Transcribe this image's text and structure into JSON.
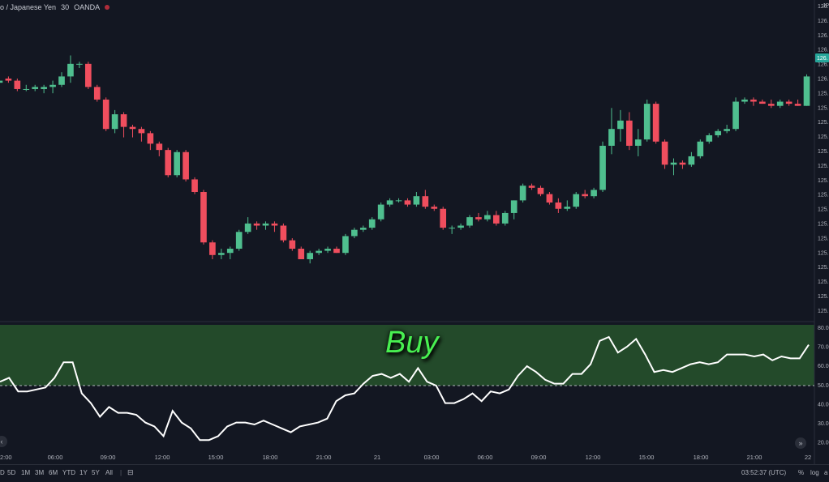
{
  "header": {
    "symbol_fragment": "o / Japanese Yen",
    "interval": "30",
    "broker": "OANDA"
  },
  "price_axis": {
    "currency_fragment": "JP",
    "labels": [
      "126.",
      "126.",
      "126.",
      "126.",
      "126.",
      "126.",
      "125.",
      "125.",
      "125.",
      "125.",
      "125.",
      "125.",
      "125.",
      "125.",
      "125.",
      "125.",
      "125.",
      "125.",
      "125.",
      "125.",
      "125.",
      "125."
    ],
    "current_price_label": "126.",
    "current_price_color": "#26a69a"
  },
  "time_axis": {
    "labels": [
      "2:00",
      "06:00",
      "09:00",
      "12:00",
      "15:00",
      "18:00",
      "21:00",
      "21",
      "03:00",
      "06:00",
      "09:00",
      "12:00",
      "15:00",
      "18:00",
      "21:00",
      "22"
    ]
  },
  "indicator": {
    "axis_labels": [
      "80.00",
      "70.00",
      "60.00",
      "50.00",
      "40.00",
      "30.00",
      "20.00"
    ],
    "zone_color": "#234a2a",
    "line_color": "#ffffff",
    "annotation": "Buy",
    "annotation_color": "#48f051"
  },
  "toolbar": {
    "ranges": [
      "5D",
      "1M",
      "3M",
      "6M",
      "YTD",
      "1Y",
      "5Y",
      "All"
    ],
    "range_prefix": "D",
    "clock": "03:52:37 (UTC)",
    "percent": "%",
    "log": "log",
    "auto": "a"
  },
  "colors": {
    "background": "#131722",
    "up": "#26a69a",
    "down": "#ef5350",
    "up_candle": "#4fbf8f",
    "down_candle": "#f04e5e"
  },
  "chart_data": {
    "type": "candlestick",
    "x_ticks": [
      "06:00",
      "09:00",
      "12:00",
      "15:00",
      "18:00",
      "21:00",
      "21",
      "03:00",
      "06:00",
      "09:00",
      "12:00",
      "15:00",
      "18:00",
      "21:00",
      "22"
    ],
    "price_ylim": [
      124.95,
      126.4
    ],
    "candles": [
      {
        "o": 126.06,
        "h": 126.08,
        "l": 126.02,
        "c": 126.07
      },
      {
        "o": 126.08,
        "h": 126.09,
        "l": 126.06,
        "c": 126.07
      },
      {
        "o": 126.07,
        "h": 126.08,
        "l": 126.02,
        "c": 126.03
      },
      {
        "o": 126.03,
        "h": 126.05,
        "l": 126.02,
        "c": 126.03
      },
      {
        "o": 126.03,
        "h": 126.05,
        "l": 126.02,
        "c": 126.04
      },
      {
        "o": 126.03,
        "h": 126.05,
        "l": 126.01,
        "c": 126.04
      },
      {
        "o": 126.04,
        "h": 126.07,
        "l": 126.01,
        "c": 126.05
      },
      {
        "o": 126.05,
        "h": 126.11,
        "l": 126.04,
        "c": 126.09
      },
      {
        "o": 126.09,
        "h": 126.19,
        "l": 126.06,
        "c": 126.15
      },
      {
        "o": 126.15,
        "h": 126.16,
        "l": 126.13,
        "c": 126.15
      },
      {
        "o": 126.15,
        "h": 126.16,
        "l": 126.03,
        "c": 126.04
      },
      {
        "o": 126.04,
        "h": 126.05,
        "l": 125.97,
        "c": 125.98
      },
      {
        "o": 125.98,
        "h": 125.99,
        "l": 125.83,
        "c": 125.84
      },
      {
        "o": 125.84,
        "h": 125.93,
        "l": 125.82,
        "c": 125.91
      },
      {
        "o": 125.91,
        "h": 125.92,
        "l": 125.8,
        "c": 125.85
      },
      {
        "o": 125.85,
        "h": 125.86,
        "l": 125.8,
        "c": 125.84
      },
      {
        "o": 125.84,
        "h": 125.85,
        "l": 125.78,
        "c": 125.82
      },
      {
        "o": 125.82,
        "h": 125.83,
        "l": 125.74,
        "c": 125.77
      },
      {
        "o": 125.77,
        "h": 125.78,
        "l": 125.71,
        "c": 125.74
      },
      {
        "o": 125.74,
        "h": 125.75,
        "l": 125.61,
        "c": 125.62
      },
      {
        "o": 125.62,
        "h": 125.74,
        "l": 125.61,
        "c": 125.73
      },
      {
        "o": 125.73,
        "h": 125.74,
        "l": 125.59,
        "c": 125.6
      },
      {
        "o": 125.6,
        "h": 125.61,
        "l": 125.53,
        "c": 125.54
      },
      {
        "o": 125.54,
        "h": 125.55,
        "l": 125.29,
        "c": 125.3
      },
      {
        "o": 125.3,
        "h": 125.31,
        "l": 125.22,
        "c": 125.24
      },
      {
        "o": 125.24,
        "h": 125.27,
        "l": 125.22,
        "c": 125.25
      },
      {
        "o": 125.25,
        "h": 125.28,
        "l": 125.22,
        "c": 125.27
      },
      {
        "o": 125.27,
        "h": 125.36,
        "l": 125.26,
        "c": 125.35
      },
      {
        "o": 125.35,
        "h": 125.42,
        "l": 125.34,
        "c": 125.39
      },
      {
        "o": 125.39,
        "h": 125.4,
        "l": 125.36,
        "c": 125.38
      },
      {
        "o": 125.38,
        "h": 125.4,
        "l": 125.36,
        "c": 125.39
      },
      {
        "o": 125.39,
        "h": 125.4,
        "l": 125.35,
        "c": 125.38
      },
      {
        "o": 125.38,
        "h": 125.39,
        "l": 125.3,
        "c": 125.31
      },
      {
        "o": 125.31,
        "h": 125.32,
        "l": 125.26,
        "c": 125.27
      },
      {
        "o": 125.27,
        "h": 125.28,
        "l": 125.22,
        "c": 125.22
      },
      {
        "o": 125.22,
        "h": 125.26,
        "l": 125.2,
        "c": 125.25
      },
      {
        "o": 125.25,
        "h": 125.27,
        "l": 125.24,
        "c": 125.26
      },
      {
        "o": 125.26,
        "h": 125.28,
        "l": 125.25,
        "c": 125.27
      },
      {
        "o": 125.27,
        "h": 125.28,
        "l": 125.25,
        "c": 125.25
      },
      {
        "o": 125.25,
        "h": 125.34,
        "l": 125.24,
        "c": 125.33
      },
      {
        "o": 125.33,
        "h": 125.37,
        "l": 125.32,
        "c": 125.36
      },
      {
        "o": 125.36,
        "h": 125.38,
        "l": 125.35,
        "c": 125.37
      },
      {
        "o": 125.37,
        "h": 125.42,
        "l": 125.36,
        "c": 125.41
      },
      {
        "o": 125.41,
        "h": 125.49,
        "l": 125.4,
        "c": 125.48
      },
      {
        "o": 125.48,
        "h": 125.51,
        "l": 125.47,
        "c": 125.5
      },
      {
        "o": 125.5,
        "h": 125.51,
        "l": 125.49,
        "c": 125.5
      },
      {
        "o": 125.5,
        "h": 125.51,
        "l": 125.47,
        "c": 125.48
      },
      {
        "o": 125.48,
        "h": 125.54,
        "l": 125.47,
        "c": 125.52
      },
      {
        "o": 125.52,
        "h": 125.55,
        "l": 125.46,
        "c": 125.47
      },
      {
        "o": 125.47,
        "h": 125.48,
        "l": 125.45,
        "c": 125.46
      },
      {
        "o": 125.46,
        "h": 125.47,
        "l": 125.36,
        "c": 125.37
      },
      {
        "o": 125.37,
        "h": 125.38,
        "l": 125.34,
        "c": 125.37
      },
      {
        "o": 125.37,
        "h": 125.39,
        "l": 125.36,
        "c": 125.38
      },
      {
        "o": 125.38,
        "h": 125.43,
        "l": 125.37,
        "c": 125.42
      },
      {
        "o": 125.42,
        "h": 125.44,
        "l": 125.4,
        "c": 125.41
      },
      {
        "o": 125.41,
        "h": 125.45,
        "l": 125.4,
        "c": 125.43
      },
      {
        "o": 125.43,
        "h": 125.45,
        "l": 125.38,
        "c": 125.39
      },
      {
        "o": 125.39,
        "h": 125.45,
        "l": 125.38,
        "c": 125.44
      },
      {
        "o": 125.44,
        "h": 125.5,
        "l": 125.41,
        "c": 125.5
      },
      {
        "o": 125.5,
        "h": 125.58,
        "l": 125.49,
        "c": 125.57
      },
      {
        "o": 125.57,
        "h": 125.58,
        "l": 125.55,
        "c": 125.56
      },
      {
        "o": 125.56,
        "h": 125.57,
        "l": 125.52,
        "c": 125.53
      },
      {
        "o": 125.53,
        "h": 125.54,
        "l": 125.48,
        "c": 125.49
      },
      {
        "o": 125.49,
        "h": 125.51,
        "l": 125.44,
        "c": 125.46
      },
      {
        "o": 125.46,
        "h": 125.5,
        "l": 125.45,
        "c": 125.47
      },
      {
        "o": 125.47,
        "h": 125.54,
        "l": 125.46,
        "c": 125.53
      },
      {
        "o": 125.53,
        "h": 125.55,
        "l": 125.51,
        "c": 125.52
      },
      {
        "o": 125.52,
        "h": 125.56,
        "l": 125.51,
        "c": 125.55
      },
      {
        "o": 125.55,
        "h": 125.78,
        "l": 125.54,
        "c": 125.76
      },
      {
        "o": 125.76,
        "h": 125.94,
        "l": 125.72,
        "c": 125.84
      },
      {
        "o": 125.84,
        "h": 125.93,
        "l": 125.78,
        "c": 125.88
      },
      {
        "o": 125.88,
        "h": 125.92,
        "l": 125.74,
        "c": 125.76
      },
      {
        "o": 125.76,
        "h": 125.84,
        "l": 125.71,
        "c": 125.79
      },
      {
        "o": 125.79,
        "h": 125.98,
        "l": 125.78,
        "c": 125.96
      },
      {
        "o": 125.96,
        "h": 125.97,
        "l": 125.77,
        "c": 125.78
      },
      {
        "o": 125.78,
        "h": 125.79,
        "l": 125.65,
        "c": 125.67
      },
      {
        "o": 125.67,
        "h": 125.7,
        "l": 125.62,
        "c": 125.68
      },
      {
        "o": 125.68,
        "h": 125.69,
        "l": 125.65,
        "c": 125.67
      },
      {
        "o": 125.67,
        "h": 125.73,
        "l": 125.66,
        "c": 125.71
      },
      {
        "o": 125.71,
        "h": 125.79,
        "l": 125.7,
        "c": 125.78
      },
      {
        "o": 125.78,
        "h": 125.82,
        "l": 125.77,
        "c": 125.81
      },
      {
        "o": 125.81,
        "h": 125.84,
        "l": 125.8,
        "c": 125.83
      },
      {
        "o": 125.83,
        "h": 125.86,
        "l": 125.82,
        "c": 125.84
      },
      {
        "o": 125.84,
        "h": 125.99,
        "l": 125.83,
        "c": 125.97
      },
      {
        "o": 125.97,
        "h": 125.99,
        "l": 125.96,
        "c": 125.98
      },
      {
        "o": 125.98,
        "h": 125.99,
        "l": 125.95,
        "c": 125.97
      },
      {
        "o": 125.97,
        "h": 125.98,
        "l": 125.96,
        "c": 125.96
      },
      {
        "o": 125.96,
        "h": 125.98,
        "l": 125.94,
        "c": 125.95
      },
      {
        "o": 125.95,
        "h": 125.98,
        "l": 125.94,
        "c": 125.97
      },
      {
        "o": 125.97,
        "h": 125.98,
        "l": 125.95,
        "c": 125.96
      },
      {
        "o": 125.96,
        "h": 125.98,
        "l": 125.95,
        "c": 125.95
      },
      {
        "o": 125.95,
        "h": 126.1,
        "l": 125.95,
        "c": 126.09
      }
    ],
    "indicator_ylim": [
      20,
      80
    ],
    "indicator_zone": [
      50,
      80
    ],
    "indicator_mid": 50,
    "indicator_values": [
      52,
      54,
      47,
      47,
      48,
      49,
      54,
      62,
      62,
      46,
      41,
      34,
      39,
      36,
      36,
      35,
      31,
      29,
      24,
      37,
      31,
      28,
      22,
      22,
      24,
      29,
      31,
      31,
      30,
      32,
      30,
      28,
      26,
      29,
      30,
      31,
      33,
      42,
      45,
      46,
      51,
      55,
      56,
      54,
      56,
      52,
      59,
      52,
      50,
      41,
      41,
      43,
      46,
      42,
      47,
      46,
      48,
      55,
      60,
      57,
      53,
      51,
      51,
      56,
      56,
      61,
      73,
      75,
      67,
      70,
      74,
      66,
      57,
      58,
      57,
      59,
      61,
      62,
      61,
      62,
      66,
      66,
      66,
      65,
      66,
      63,
      65,
      64,
      64,
      71
    ]
  }
}
